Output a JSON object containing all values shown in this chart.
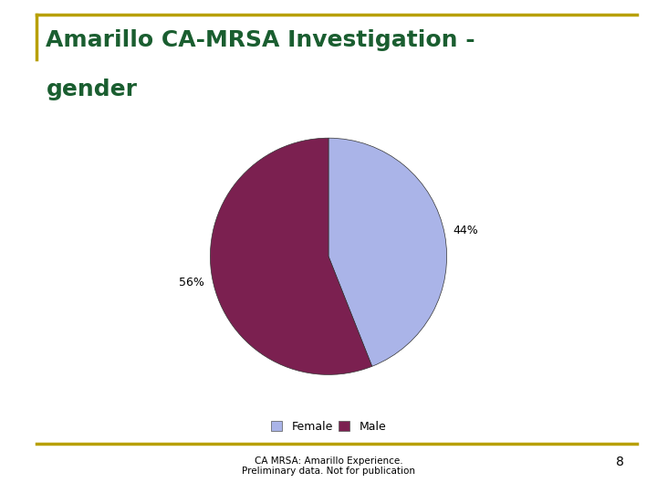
{
  "title_line1": "Amarillo CA-MRSA Investigation -",
  "title_line2": "gender",
  "title_color": "#1a5e30",
  "title_fontsize": 18,
  "title_fontweight": "bold",
  "slices": [
    44,
    56
  ],
  "labels": [
    "Female",
    "Male"
  ],
  "colors": [
    "#aab4e8",
    "#7b2050"
  ],
  "legend_labels": [
    "Female",
    "Male"
  ],
  "legend_colors": [
    "#aab4e8",
    "#7b2050"
  ],
  "footer_line1": "CA MRSA: Amarillo Experience.",
  "footer_line2": "Preliminary data. Not for publication",
  "footer_page": "8",
  "border_color": "#b8a000",
  "background_color": "#ffffff",
  "startangle": 90,
  "pctdistance": 1.15
}
